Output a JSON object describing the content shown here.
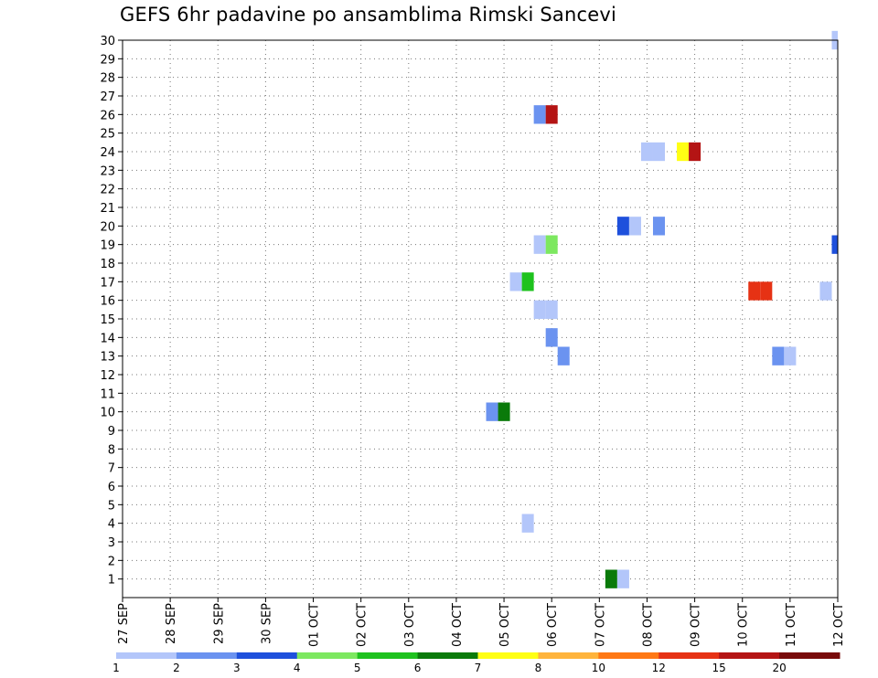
{
  "chart_data": {
    "type": "heatmap",
    "title": "GEFS 6hr padavine po ansamblima Rimski Sancevi",
    "xlabel": "",
    "ylabel": "",
    "x_tick_labels": [
      "27 SEP",
      "28 SEP",
      "29 SEP",
      "30 SEP",
      "01 OCT",
      "02 OCT",
      "03 OCT",
      "04 OCT",
      "05 OCT",
      "06 OCT",
      "07 OCT",
      "08 OCT",
      "09 OCT",
      "10 OCT",
      "11 OCT",
      "12 OCT"
    ],
    "x_step_hours": 6,
    "xlim_steps": [
      0,
      60
    ],
    "ylim": [
      0,
      30
    ],
    "y_tick_labels": [
      "1",
      "2",
      "3",
      "4",
      "5",
      "6",
      "7",
      "8",
      "9",
      "10",
      "11",
      "12",
      "13",
      "14",
      "15",
      "16",
      "17",
      "18",
      "19",
      "20",
      "21",
      "22",
      "23",
      "24",
      "25",
      "26",
      "27",
      "28",
      "29",
      "30"
    ],
    "grid": true,
    "legend": {
      "position": "bottom",
      "bins": [
        {
          "color": "#b3c6fa"
        },
        {
          "color": "#6b93f0"
        },
        {
          "color": "#1e50dc"
        },
        {
          "color": "#7de860"
        },
        {
          "color": "#1ec21e"
        },
        {
          "color": "#0a7a0a"
        },
        {
          "color": "#ffff14"
        },
        {
          "color": "#ffb43c"
        },
        {
          "color": "#ff7814"
        },
        {
          "color": "#e63214"
        },
        {
          "color": "#b41414"
        },
        {
          "color": "#780a0a"
        }
      ],
      "labels": [
        "1",
        "2",
        "3",
        "4",
        "5",
        "6",
        "7",
        "8",
        "10",
        "12",
        "15",
        "20"
      ]
    },
    "cells": [
      {
        "member": 26,
        "step": 35,
        "value": 2.5
      },
      {
        "member": 26,
        "step": 36,
        "value": 16
      },
      {
        "member": 24,
        "step": 44,
        "value": 1.5
      },
      {
        "member": 24,
        "step": 45,
        "value": 1.5
      },
      {
        "member": 24,
        "step": 47,
        "value": 7.5
      },
      {
        "member": 24,
        "step": 48,
        "value": 16
      },
      {
        "member": 20,
        "step": 42,
        "value": 3.5
      },
      {
        "member": 20,
        "step": 43,
        "value": 1.5
      },
      {
        "member": 20,
        "step": 45,
        "value": 2.5
      },
      {
        "member": 19,
        "step": 35,
        "value": 1.5
      },
      {
        "member": 19,
        "step": 36,
        "value": 4.5
      },
      {
        "member": 19,
        "step": 60,
        "value": 3.5
      },
      {
        "member": 17,
        "step": 33,
        "value": 1.5
      },
      {
        "member": 17,
        "step": 34,
        "value": 5.5
      },
      {
        "member": 16.5,
        "step": 53,
        "value": 13
      },
      {
        "member": 16.5,
        "step": 54,
        "value": 13
      },
      {
        "member": 16.5,
        "step": 59,
        "value": 1.5
      },
      {
        "member": 15.5,
        "step": 35,
        "value": 1.5
      },
      {
        "member": 15.5,
        "step": 36,
        "value": 1.5
      },
      {
        "member": 14,
        "step": 36,
        "value": 2.5
      },
      {
        "member": 13,
        "step": 37,
        "value": 2.5
      },
      {
        "member": 13,
        "step": 55,
        "value": 2.5
      },
      {
        "member": 13,
        "step": 56,
        "value": 1.5
      },
      {
        "member": 10,
        "step": 31,
        "value": 2.5
      },
      {
        "member": 10,
        "step": 32,
        "value": 6.5
      },
      {
        "member": 4,
        "step": 34,
        "value": 1.5
      },
      {
        "member": 1,
        "step": 41,
        "value": 6.5
      },
      {
        "member": 1,
        "step": 42,
        "value": 1.5
      },
      {
        "member": 30,
        "step": 60,
        "value": 1.5
      }
    ]
  }
}
